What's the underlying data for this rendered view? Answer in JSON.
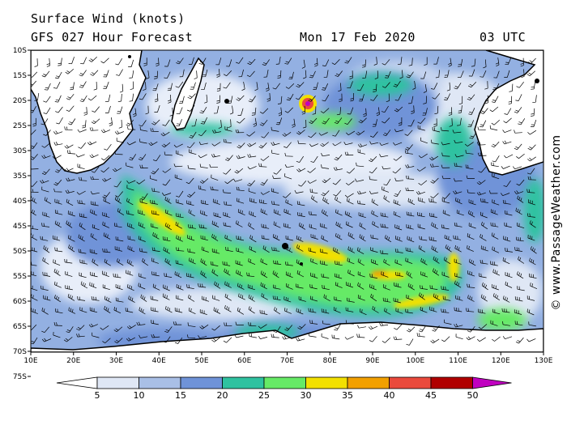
{
  "header": {
    "title": "Surface Wind (knots)",
    "model": "GFS 027 Hour Forecast",
    "date": "Mon 17 Feb 2020",
    "time": "03 UTC"
  },
  "credit": "© www.PassageWeather.com",
  "lat_labels": [
    "10S",
    "15S",
    "20S",
    "25S",
    "30S",
    "35S",
    "40S",
    "45S",
    "50S",
    "55S",
    "60S",
    "65S",
    "70S",
    "75S"
  ],
  "lon_labels": [
    "10E",
    "20E",
    "30E",
    "40E",
    "50E",
    "60E",
    "70E",
    "80E",
    "90E",
    "100E",
    "110E",
    "120E",
    "130E"
  ],
  "scale": {
    "labels": [
      "5",
      "10",
      "15",
      "20",
      "25",
      "30",
      "35",
      "40",
      "45",
      "50"
    ],
    "colors": [
      "#dfe7f5",
      "#a9bfe6",
      "#6f93d8",
      "#2fc2a0",
      "#66ea66",
      "#f2e000",
      "#f2a000",
      "#ea4a3c",
      "#b00000",
      "#c000c0"
    ]
  }
}
